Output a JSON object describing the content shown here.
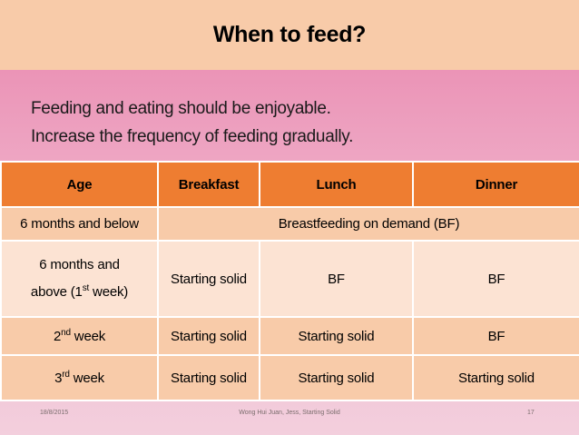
{
  "title": "When to feed?",
  "bullets": [
    "Feeding and eating should be enjoyable.",
    "Increase the frequency of feeding gradually."
  ],
  "table": {
    "headers": [
      "Age",
      "Breakfast",
      "Lunch",
      "Dinner"
    ],
    "row1": {
      "age": "6 months and below",
      "merged": "Breastfeeding on demand (BF)"
    },
    "row2": {
      "age_line1": "6 months and",
      "age_line2_pre": "above (1",
      "age_line2_sup": "st",
      "age_line2_post": " week)",
      "breakfast": "Starting solid",
      "lunch": "BF",
      "dinner": "BF"
    },
    "row3": {
      "age_num": "2",
      "age_sup": "nd",
      "age_post": " week",
      "breakfast": "Starting solid",
      "lunch": "Starting solid",
      "dinner": "BF"
    },
    "row4": {
      "age_num": "3",
      "age_sup": "rd",
      "age_post": " week",
      "breakfast": "Starting solid",
      "lunch": "Starting solid",
      "dinner": "Starting solid"
    }
  },
  "footer": {
    "date": "18/8/2015",
    "author": "Wong Hui Juan, Jess, Starting Solid",
    "page": "17"
  }
}
